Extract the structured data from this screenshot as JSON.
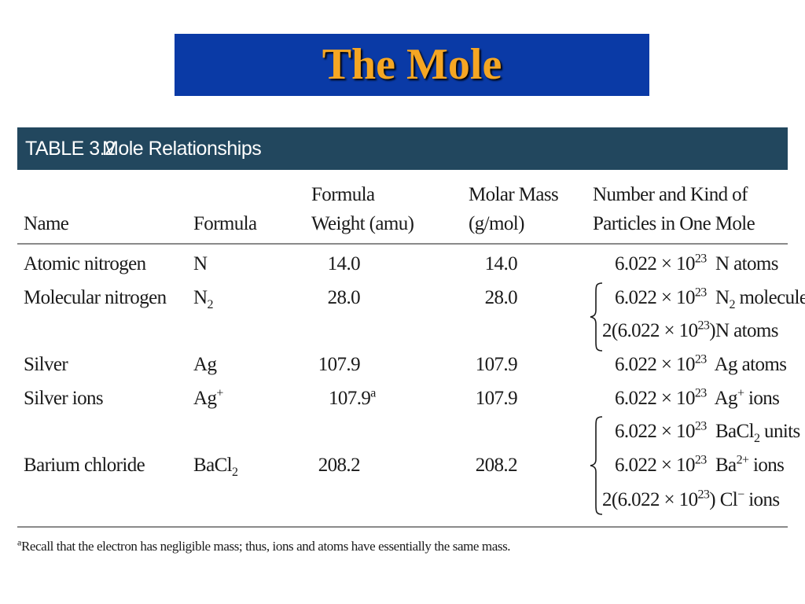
{
  "slide": {
    "title": "The Mole"
  },
  "table": {
    "number": "TABLE 3.2",
    "title": "Mole Relationships",
    "headers": {
      "name": "Name",
      "formula": "Formula",
      "fw_line1": "Formula",
      "fw_line2": "Weight (amu)",
      "mm_line1": "Molar Mass",
      "mm_line2": "(g/mol)",
      "particles_line1": "Number and Kind of",
      "particles_line2": "Particles in One Mole"
    },
    "rows": [
      {
        "name": "Atomic nitrogen",
        "formula_base": "N",
        "formula_sub": "",
        "formula_sup": "",
        "fw": "14.0",
        "fw_sup": "",
        "mm": "14.0"
      },
      {
        "name": "Molecular nitrogen",
        "formula_base": "N",
        "formula_sub": "2",
        "formula_sup": "",
        "fw": "28.0",
        "fw_sup": "",
        "mm": "28.0"
      },
      {
        "name": "Silver",
        "formula_base": "Ag",
        "formula_sub": "",
        "formula_sup": "",
        "fw": "107.9",
        "fw_sup": "",
        "mm": "107.9"
      },
      {
        "name": "Silver ions",
        "formula_base": "Ag",
        "formula_sub": "",
        "formula_sup": "+",
        "fw": "107.9",
        "fw_sup": "a",
        "mm": "107.9"
      },
      {
        "name": "Barium chloride",
        "formula_base": "BaCl",
        "formula_sub": "2",
        "formula_sup": "",
        "fw": "208.2",
        "fw_sup": "",
        "mm": "208.2"
      }
    ],
    "particles": [
      {
        "pre": "6.022 × 10",
        "exp": "23",
        "post": "",
        "kind": "N",
        "kind_sub": "",
        "kind_sup": "",
        "kind_rest": " atoms"
      },
      {
        "pre": "6.022 × 10",
        "exp": "23",
        "post": "",
        "kind": "N",
        "kind_sub": "2",
        "kind_sup": "",
        "kind_rest": " molecules"
      },
      {
        "pre": "2(6.022 × 10",
        "exp": "23",
        "post": ")",
        "kind": "N",
        "kind_sub": "",
        "kind_sup": "",
        "kind_rest": " atoms"
      },
      {
        "pre": "6.022 × 10",
        "exp": "23",
        "post": "",
        "kind": "Ag",
        "kind_sub": "",
        "kind_sup": "",
        "kind_rest": " atoms"
      },
      {
        "pre": "6.022 × 10",
        "exp": "23",
        "post": "",
        "kind": "Ag",
        "kind_sub": "",
        "kind_sup": "+",
        "kind_rest": " ions"
      },
      {
        "pre": "6.022 × 10",
        "exp": "23",
        "post": "",
        "kind": "BaCl",
        "kind_sub": "2",
        "kind_sup": "",
        "kind_rest": " units"
      },
      {
        "pre": "6.022 × 10",
        "exp": "23",
        "post": "",
        "kind": "Ba",
        "kind_sub": "",
        "kind_sup": "2+",
        "kind_rest": " ions"
      },
      {
        "pre": "2(6.022 × 10",
        "exp": "23",
        "post": ")",
        "kind": "Cl",
        "kind_sub": "",
        "kind_sup": "−",
        "kind_rest": " ions"
      }
    ],
    "footnote": {
      "marker": "a",
      "text": "Recall that the electron has negligible mass; thus, ions and atoms have essentially the same mass."
    }
  }
}
